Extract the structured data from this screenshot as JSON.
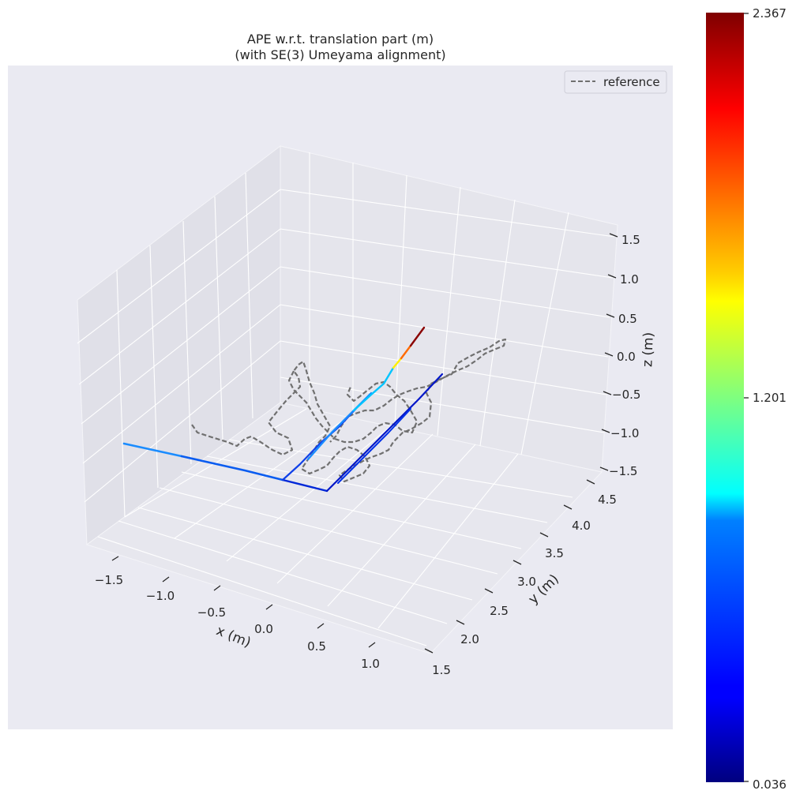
{
  "chart_data": {
    "type": "line",
    "projection": "3d",
    "title_line1": "APE w.r.t. translation part (m)",
    "title_line2": "(with SE(3) Umeyama alignment)",
    "xlabel": "x (m)",
    "ylabel": "y (m)",
    "zlabel": "z (m)",
    "x_ticks": [
      "−1.5",
      "−1.0",
      "−0.5",
      "0.0",
      "0.5",
      "1.0"
    ],
    "y_ticks": [
      "1.5",
      "2.0",
      "2.5",
      "3.0",
      "3.5",
      "4.0",
      "4.5"
    ],
    "z_ticks": [
      "1.5",
      "1.0",
      "0.5",
      "0.0",
      "−0.5",
      "−1.0",
      "−1.5"
    ],
    "legend": {
      "placement": "top-right",
      "entries": [
        {
          "label": "reference",
          "style": "dashed",
          "color": "#707070"
        }
      ]
    },
    "colorbar": {
      "colormap": "jet",
      "min": 0.036,
      "mid": 1.201,
      "max": 2.367,
      "tick_labels": [
        "2.367",
        "1.201",
        "0.036"
      ]
    },
    "series": [
      {
        "role": "reference",
        "style": "dashed",
        "color": "#707070"
      },
      {
        "role": "estimate",
        "style": "solid",
        "color_by": "APE (m)"
      }
    ],
    "background_color": "#eaeaf2",
    "grid": true
  }
}
